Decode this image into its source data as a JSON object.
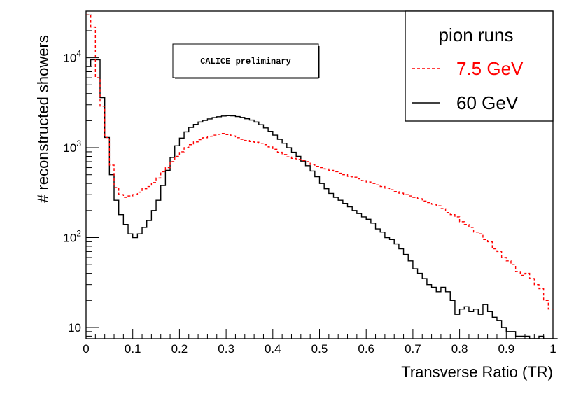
{
  "chart_data": {
    "type": "line",
    "title": "",
    "xlabel": "Transverse Ratio (TR)",
    "ylabel": "# reconstructed showers",
    "xlim": [
      0,
      1
    ],
    "ylim": [
      7.5,
      33000
    ],
    "y_scale": "log",
    "grid": false,
    "x_ticks": [
      {
        "value": 0,
        "label": "0"
      },
      {
        "value": 0.1,
        "label": "0.1"
      },
      {
        "value": 0.2,
        "label": "0.2"
      },
      {
        "value": 0.3,
        "label": "0.3"
      },
      {
        "value": 0.4,
        "label": "0.4"
      },
      {
        "value": 0.5,
        "label": "0.5"
      },
      {
        "value": 0.6,
        "label": "0.6"
      },
      {
        "value": 0.7,
        "label": "0.7"
      },
      {
        "value": 0.8,
        "label": "0.8"
      },
      {
        "value": 0.9,
        "label": "0.9"
      },
      {
        "value": 1,
        "label": "1"
      }
    ],
    "y_ticks": [
      {
        "value": 10,
        "base": "10",
        "exp": ""
      },
      {
        "value": 100,
        "base": "10",
        "exp": "2"
      },
      {
        "value": 1000,
        "base": "10",
        "exp": "3"
      },
      {
        "value": 10000,
        "base": "10",
        "exp": "4"
      }
    ],
    "legend": {
      "title": "pion runs",
      "position": "top-right"
    },
    "annotation": "CALICE preliminary",
    "bin_width": 0.01,
    "series": [
      {
        "name": "7.5 GeV",
        "color": "#ff0000",
        "style": "dashed",
        "values": [
          30000,
          22000,
          6000,
          2900,
          1300,
          640,
          360,
          300,
          280,
          290,
          300,
          320,
          350,
          370,
          410,
          460,
          540,
          600,
          700,
          800,
          900,
          1000,
          1080,
          1160,
          1230,
          1290,
          1340,
          1380,
          1410,
          1440,
          1400,
          1350,
          1290,
          1240,
          1200,
          1170,
          1150,
          1120,
          1080,
          1020,
          960,
          890,
          840,
          790,
          760,
          740,
          720,
          700,
          650,
          620,
          600,
          580,
          560,
          540,
          520,
          500,
          480,
          470,
          450,
          430,
          415,
          400,
          385,
          370,
          355,
          340,
          325,
          312,
          300,
          290,
          280,
          270,
          255,
          245,
          235,
          225,
          210,
          190,
          180,
          170,
          150,
          140,
          130,
          115,
          110,
          95,
          90,
          75,
          70,
          60,
          55,
          50,
          42,
          38,
          40,
          35,
          30,
          27,
          20,
          16
        ]
      },
      {
        "name": "60 GeV",
        "color": "#000000",
        "style": "solid",
        "values": [
          8000,
          9500,
          9500,
          3600,
          1300,
          500,
          260,
          180,
          140,
          110,
          100,
          110,
          130,
          155,
          200,
          260,
          380,
          560,
          780,
          1050,
          1280,
          1500,
          1680,
          1820,
          1930,
          2010,
          2090,
          2160,
          2210,
          2250,
          2270,
          2260,
          2220,
          2170,
          2100,
          2030,
          1930,
          1800,
          1660,
          1520,
          1380,
          1240,
          1120,
          1000,
          890,
          800,
          710,
          630,
          550,
          475,
          400,
          350,
          310,
          280,
          260,
          240,
          220,
          200,
          185,
          170,
          160,
          145,
          125,
          115,
          100,
          95,
          85,
          75,
          65,
          55,
          45,
          40,
          35,
          30,
          28,
          25,
          28,
          25,
          20,
          14,
          16,
          17,
          15,
          16,
          14,
          18,
          15,
          13,
          12,
          10,
          9,
          9,
          8,
          8,
          8,
          7,
          6,
          8,
          6,
          6,
          7
        ]
      }
    ]
  }
}
